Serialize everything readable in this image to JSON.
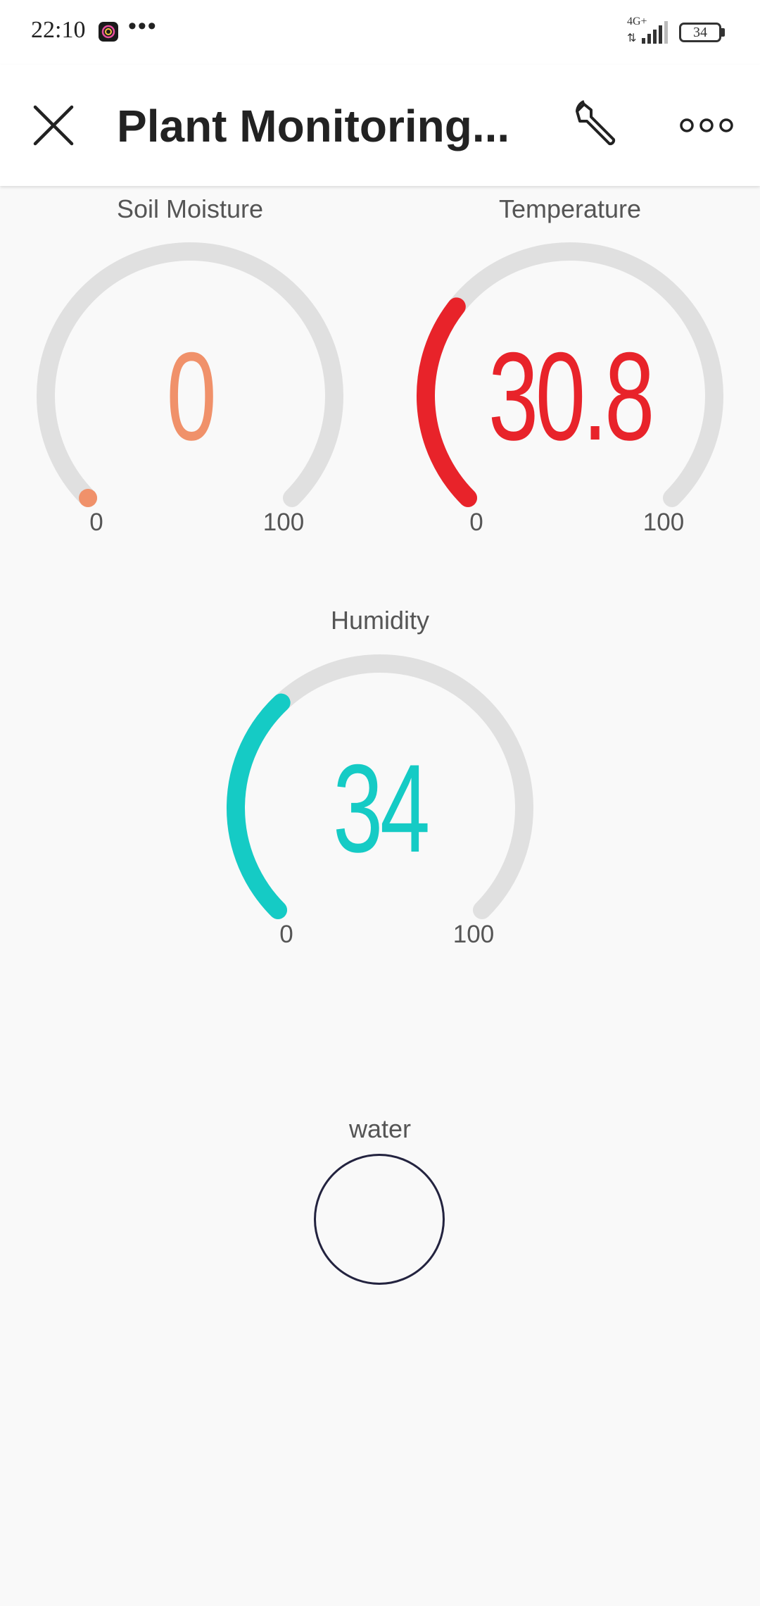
{
  "status_bar": {
    "time": "22:10",
    "network": "4G+",
    "network_arrows": "⇅",
    "battery": "34"
  },
  "header": {
    "title": "Plant Monitoring..."
  },
  "gauges": [
    {
      "id": "soil",
      "label": "Soil Moisture",
      "value": "0",
      "numeric_value": 0,
      "min": 0,
      "max": 100,
      "min_label": "0",
      "max_label": "100",
      "color": "#f0916a"
    },
    {
      "id": "temperature",
      "label": "Temperature",
      "value": "30.8",
      "numeric_value": 30.8,
      "min": 0,
      "max": 100,
      "min_label": "0",
      "max_label": "100",
      "color": "#e8232a"
    },
    {
      "id": "humidity",
      "label": "Humidity",
      "value": "34",
      "numeric_value": 34,
      "min": 0,
      "max": 100,
      "min_label": "0",
      "max_label": "100",
      "color": "#15cbc5"
    }
  ],
  "water": {
    "label": "water",
    "border_color": "#23233f"
  },
  "colors": {
    "track": "#e0e0e0",
    "background": "#f9f9f9"
  }
}
